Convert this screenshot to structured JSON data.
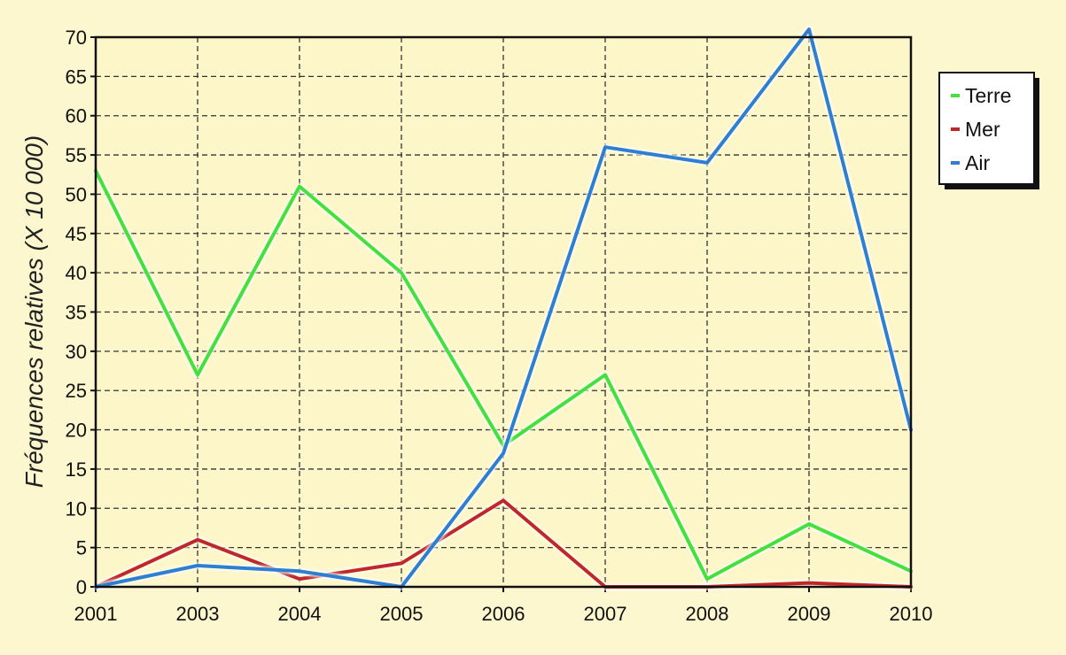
{
  "chart_data": {
    "type": "line",
    "title": "",
    "xlabel": "",
    "ylabel": "Fréquences relatives (X 10 000)",
    "categories": [
      "2001",
      "2003",
      "2004",
      "2005",
      "2006",
      "2007",
      "2008",
      "2009",
      "2010"
    ],
    "ylim": [
      0,
      70
    ],
    "yticks": [
      0,
      5,
      10,
      15,
      20,
      25,
      30,
      35,
      40,
      45,
      50,
      55,
      60,
      65,
      70
    ],
    "grid": true,
    "legend_position": "top-right",
    "series": [
      {
        "name": "Terre",
        "color": "#44e03c",
        "values": [
          53,
          27,
          51,
          40,
          18,
          27,
          1,
          8,
          2
        ]
      },
      {
        "name": "Mer",
        "color": "#c02828",
        "values": [
          0,
          6,
          1,
          3,
          11,
          0,
          0,
          0.5,
          0
        ]
      },
      {
        "name": "Air",
        "color": "#2f7fd0",
        "values": [
          0,
          2.7,
          2,
          0,
          17,
          56,
          54,
          71,
          20
        ]
      }
    ]
  }
}
